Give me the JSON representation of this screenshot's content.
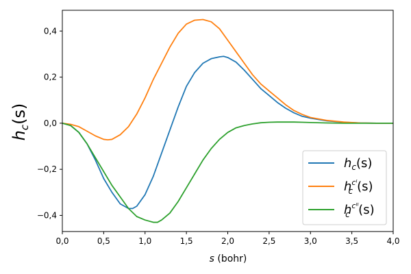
{
  "chart_data": {
    "type": "line",
    "xlabel": {
      "var": "s",
      "unit": " (bohr)"
    },
    "ylabel": {
      "base": "h",
      "sub": "c",
      "rest": "(s)"
    },
    "xlim": [
      0,
      4
    ],
    "ylim": [
      -0.47,
      0.49
    ],
    "x_ticks": [
      0,
      0.5,
      1.0,
      1.5,
      2.0,
      2.5,
      3.0,
      3.5,
      4.0
    ],
    "x_tick_labels": [
      "0,0",
      "0,5",
      "1,0",
      "1,5",
      "2,0",
      "2,5",
      "3,0",
      "3,5",
      "4,0"
    ],
    "y_ticks": [
      -0.4,
      -0.2,
      0.0,
      0.2,
      0.4
    ],
    "y_tick_labels": [
      "−0,4",
      "−0,2",
      "0,0",
      "0,2",
      "0,4"
    ],
    "grid": false,
    "legend_position": "lower-right",
    "series": [
      {
        "legend": {
          "base": "h",
          "sub": "c",
          "sup": "",
          "rest": "(s)"
        },
        "color": "#1f77b4",
        "x": [
          0,
          0.1,
          0.2,
          0.3,
          0.4,
          0.5,
          0.6,
          0.7,
          0.8,
          0.85,
          0.9,
          1.0,
          1.1,
          1.2,
          1.3,
          1.4,
          1.5,
          1.6,
          1.7,
          1.8,
          1.9,
          1.95,
          2.0,
          2.1,
          2.2,
          2.3,
          2.4,
          2.5,
          2.6,
          2.7,
          2.8,
          2.9,
          3.0,
          3.2,
          3.4,
          3.6,
          3.8,
          4.0
        ],
        "y": [
          0,
          -0.01,
          -0.04,
          -0.09,
          -0.16,
          -0.24,
          -0.3,
          -0.35,
          -0.37,
          -0.37,
          -0.36,
          -0.31,
          -0.23,
          -0.13,
          -0.03,
          0.07,
          0.16,
          0.22,
          0.26,
          0.28,
          0.288,
          0.29,
          0.285,
          0.265,
          0.23,
          0.19,
          0.15,
          0.12,
          0.09,
          0.065,
          0.045,
          0.03,
          0.022,
          0.01,
          0.004,
          0.001,
          0,
          0
        ]
      },
      {
        "legend": {
          "base": "h",
          "sub": "c",
          "sup": "cᴵ",
          "rest": "(s)"
        },
        "color": "#ff7f0e",
        "x": [
          0,
          0.1,
          0.2,
          0.3,
          0.4,
          0.5,
          0.55,
          0.6,
          0.7,
          0.8,
          0.9,
          1.0,
          1.1,
          1.2,
          1.3,
          1.4,
          1.5,
          1.6,
          1.7,
          1.8,
          1.9,
          2.0,
          2.1,
          2.2,
          2.3,
          2.4,
          2.5,
          2.6,
          2.7,
          2.8,
          2.9,
          3.0,
          3.2,
          3.4,
          3.6,
          3.8,
          4.0
        ],
        "y": [
          0,
          -0.005,
          -0.015,
          -0.035,
          -0.055,
          -0.07,
          -0.072,
          -0.07,
          -0.05,
          -0.015,
          0.04,
          0.11,
          0.19,
          0.26,
          0.33,
          0.39,
          0.43,
          0.447,
          0.45,
          0.44,
          0.41,
          0.36,
          0.31,
          0.26,
          0.21,
          0.17,
          0.14,
          0.11,
          0.08,
          0.055,
          0.038,
          0.025,
          0.012,
          0.005,
          0.001,
          0,
          0
        ]
      },
      {
        "legend": {
          "base": "h",
          "sub": "c",
          "sup": "cᴵᴵ",
          "rest": "(s)"
        },
        "color": "#2ca02c",
        "x": [
          0,
          0.1,
          0.2,
          0.3,
          0.4,
          0.5,
          0.6,
          0.7,
          0.8,
          0.9,
          1.0,
          1.1,
          1.15,
          1.2,
          1.3,
          1.4,
          1.5,
          1.6,
          1.7,
          1.8,
          1.9,
          2.0,
          2.1,
          2.2,
          2.3,
          2.4,
          2.5,
          2.6,
          2.7,
          2.8,
          2.9,
          3.0,
          3.2,
          3.4,
          3.6,
          3.8,
          4.0
        ],
        "y": [
          0,
          -0.01,
          -0.04,
          -0.09,
          -0.15,
          -0.21,
          -0.27,
          -0.32,
          -0.37,
          -0.405,
          -0.42,
          -0.43,
          -0.43,
          -0.42,
          -0.39,
          -0.34,
          -0.28,
          -0.22,
          -0.16,
          -0.11,
          -0.07,
          -0.04,
          -0.02,
          -0.01,
          -0.003,
          0.002,
          0.004,
          0.005,
          0.005,
          0.005,
          0.004,
          0.003,
          0.001,
          0,
          0,
          0,
          0
        ]
      }
    ]
  }
}
